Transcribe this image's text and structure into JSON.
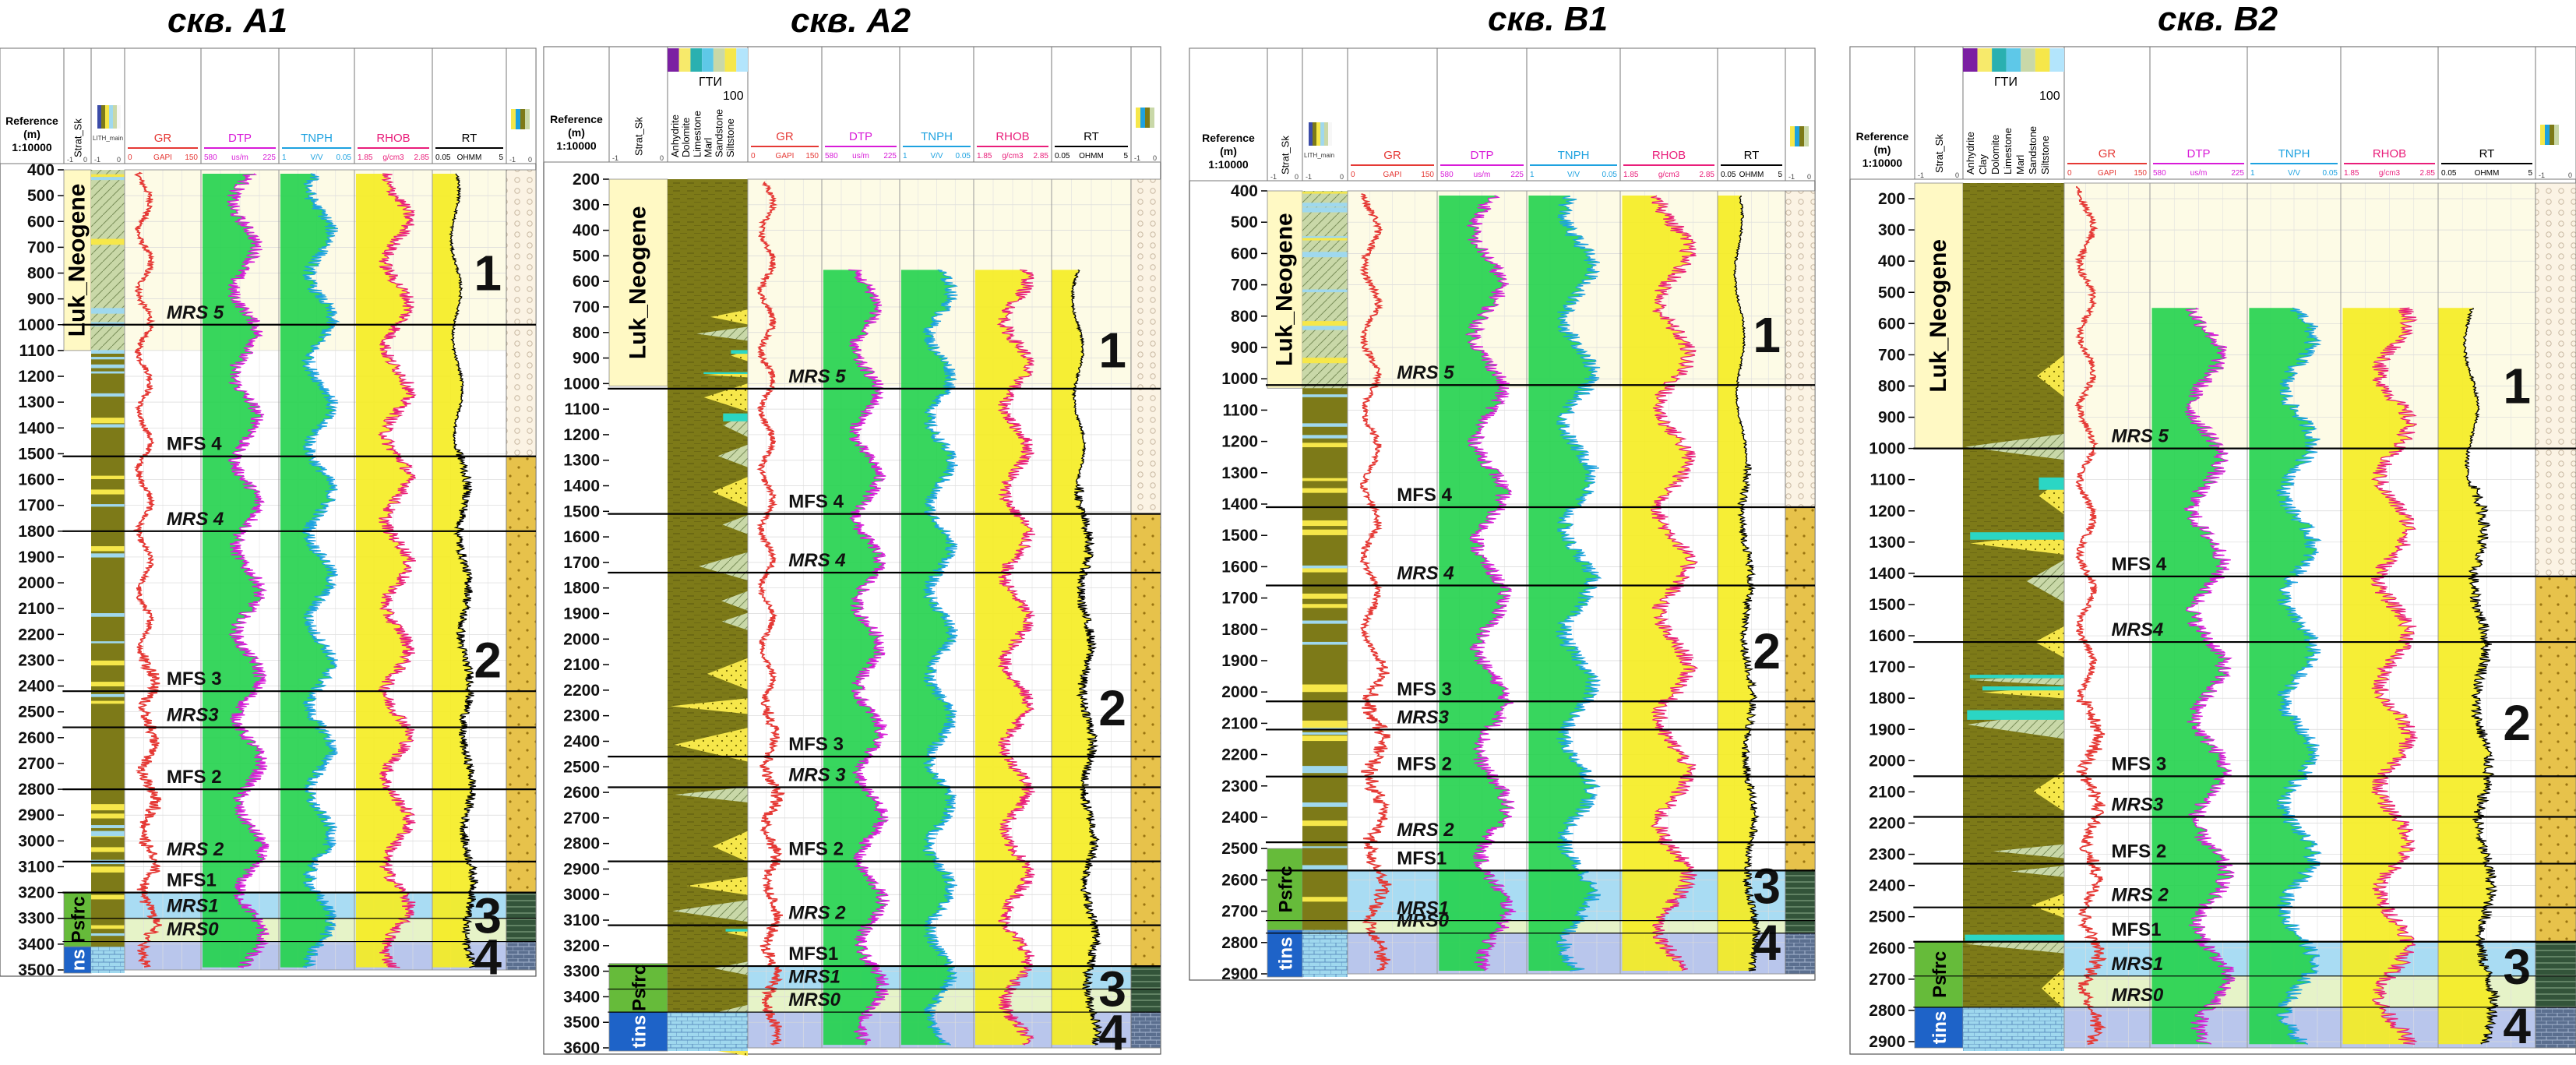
{
  "wells": [
    {
      "title": "скв. A1",
      "ref_label": [
        "Reference",
        "(m)",
        "1:10000"
      ],
      "strat_header": "Strat_Sk",
      "lith_header_small": "LITH_main",
      "curves": [
        {
          "name": "GR",
          "color": "#e53935",
          "min": "0",
          "unit": "GAPI",
          "max": "150"
        },
        {
          "name": "DTP",
          "color": "#d81bd8",
          "min": "580",
          "unit": "us/m",
          "max": "225"
        },
        {
          "name": "TNPH",
          "color": "#1ea2e0",
          "min": "1",
          "unit": "V/V",
          "max": "0.05"
        },
        {
          "name": "RHOB",
          "color": "#e91e7a",
          "min": "1.85",
          "unit": "g/cm3",
          "max": "2.85"
        },
        {
          "name": "RT",
          "color": "#000000",
          "min": "0.05",
          "unit": "OHMM",
          "max": "5"
        }
      ],
      "depth_ticks": [
        "400",
        "500",
        "600",
        "700",
        "800",
        "900",
        "1000",
        "1100",
        "1200",
        "1300",
        "1400",
        "1500",
        "1600",
        "1700",
        "1800",
        "1900",
        "2000",
        "2100",
        "2200",
        "2300",
        "2400",
        "2500",
        "2600",
        "2700",
        "2800",
        "2900",
        "3000",
        "3100",
        "3200",
        "3300",
        "3400",
        "3500"
      ],
      "strat_units": [
        {
          "label": "Luk_Neogene",
          "from": 400,
          "to": 1100,
          "color": "#fff9c4"
        },
        {
          "label": "Psfrc",
          "from": 3200,
          "to": 3410,
          "color": "#66bb3a"
        },
        {
          "label": "ns",
          "from": 3410,
          "to": 3520,
          "color": "#1e63c8"
        }
      ],
      "surfaces": [
        {
          "label": "MRS 5",
          "depth": 1000
        },
        {
          "label": "MFS 4",
          "depth": 1510
        },
        {
          "label": "MRS 4",
          "depth": 1800
        },
        {
          "label": "MFS 3",
          "depth": 2420
        },
        {
          "label": "MRS3",
          "depth": 2560
        },
        {
          "label": "MFS 2",
          "depth": 2800
        },
        {
          "label": "MRS 2",
          "depth": 3080
        },
        {
          "label": "MFS1",
          "depth": 3200
        },
        {
          "label": "MRS1",
          "depth": 3300
        },
        {
          "label": "MRS0",
          "depth": 3390
        }
      ],
      "sequences": [
        {
          "label": "1",
          "depth": 800
        },
        {
          "label": "2",
          "depth": 2300
        },
        {
          "label": "3",
          "depth": 3290
        },
        {
          "label": "4",
          "depth": 3450
        }
      ]
    },
    {
      "title": "скв. A2",
      "ref_label": [
        "Reference",
        "(m)",
        "1:10000"
      ],
      "strat_header": "Strat_Sk",
      "gti_header": "ГТИ",
      "gti_scale": "100",
      "gti_lithologies": [
        "Anhydrite",
        "Dolomite",
        "Limestone",
        "Marl",
        "Sandstone",
        "Siltstone"
      ],
      "curves": [
        {
          "name": "GR",
          "color": "#e53935",
          "min": "0",
          "unit": "GAPI",
          "max": "150"
        },
        {
          "name": "DTP",
          "color": "#d81bd8",
          "min": "580",
          "unit": "us/m",
          "max": "225"
        },
        {
          "name": "TNPH",
          "color": "#1ea2e0",
          "min": "1",
          "unit": "V/V",
          "max": "0.05"
        },
        {
          "name": "RHOB",
          "color": "#e91e7a",
          "min": "1.85",
          "unit": "g/cm3",
          "max": "2.85"
        },
        {
          "name": "RT",
          "color": "#000000",
          "min": "0.05",
          "unit": "OHMM",
          "max": "5"
        }
      ],
      "depth_ticks": [
        "200",
        "300",
        "400",
        "500",
        "600",
        "700",
        "800",
        "900",
        "1000",
        "1100",
        "1200",
        "1300",
        "1400",
        "1500",
        "1600",
        "1700",
        "1800",
        "1900",
        "2000",
        "2100",
        "2200",
        "2300",
        "2400",
        "2500",
        "2600",
        "2700",
        "2800",
        "2900",
        "3000",
        "3100",
        "3200",
        "3300",
        "3400",
        "3500",
        "3600"
      ],
      "strat_units": [
        {
          "label": "Luk_Neogene",
          "from": 200,
          "to": 1010,
          "color": "#fff9c4"
        },
        {
          "label": "Psfrc",
          "from": 3270,
          "to": 3460,
          "color": "#66bb3a"
        },
        {
          "label": "tins",
          "from": 3460,
          "to": 3620,
          "color": "#1e63c8"
        }
      ],
      "surfaces": [
        {
          "label": "MRS 5",
          "depth": 1020
        },
        {
          "label": "MFS 4",
          "depth": 1510
        },
        {
          "label": "MRS 4",
          "depth": 1740
        },
        {
          "label": "MFS 3",
          "depth": 2460
        },
        {
          "label": "MRS 3",
          "depth": 2580
        },
        {
          "label": "MFS 2",
          "depth": 2870
        },
        {
          "label": "MRS 2",
          "depth": 3120
        },
        {
          "label": "MFS1",
          "depth": 3280
        },
        {
          "label": "MRS1",
          "depth": 3370
        },
        {
          "label": "MRS0",
          "depth": 3460
        }
      ],
      "sequences": [
        {
          "label": "1",
          "depth": 870
        },
        {
          "label": "2",
          "depth": 2270
        },
        {
          "label": "3",
          "depth": 3370
        },
        {
          "label": "4",
          "depth": 3540
        }
      ]
    },
    {
      "title": "скв. B1",
      "ref_label": [
        "Reference",
        "(m)",
        "1:10000"
      ],
      "strat_header": "Strat_Sk",
      "lith_header_small": "LITH_main",
      "curves": [
        {
          "name": "GR",
          "color": "#e53935",
          "min": "0",
          "unit": "GAPI",
          "max": "150"
        },
        {
          "name": "DTP",
          "color": "#d81bd8",
          "min": "580",
          "unit": "us/m",
          "max": "225"
        },
        {
          "name": "TNPH",
          "color": "#1ea2e0",
          "min": "1",
          "unit": "V/V",
          "max": "0.05"
        },
        {
          "name": "RHOB",
          "color": "#e91e7a",
          "min": "1.85",
          "unit": "g/cm3",
          "max": "2.85"
        },
        {
          "name": "RT",
          "color": "#000000",
          "min": "0.05",
          "unit": "OHMM",
          "max": "5"
        }
      ],
      "depth_ticks": [
        "400",
        "500",
        "600",
        "700",
        "800",
        "900",
        "1000",
        "1100",
        "1200",
        "1300",
        "1400",
        "1500",
        "1600",
        "1700",
        "1800",
        "1900",
        "2000",
        "2100",
        "2200",
        "2300",
        "2400",
        "2500",
        "2600",
        "2700",
        "2800",
        "2900"
      ],
      "strat_units": [
        {
          "label": "Luk_Neogene",
          "from": 400,
          "to": 1030,
          "color": "#fff9c4"
        },
        {
          "label": "Psfrc",
          "from": 2500,
          "to": 2760,
          "color": "#66bb3a"
        },
        {
          "label": "tins",
          "from": 2760,
          "to": 2910,
          "color": "#1e63c8"
        }
      ],
      "surfaces": [
        {
          "label": "MRS 5",
          "depth": 1020
        },
        {
          "label": "MFS 4",
          "depth": 1410
        },
        {
          "label": "MRS 4",
          "depth": 1660
        },
        {
          "label": "MFS 3",
          "depth": 2030
        },
        {
          "label": "MRS3",
          "depth": 2120
        },
        {
          "label": "MFS 2",
          "depth": 2270
        },
        {
          "label": "MRS 2",
          "depth": 2480
        },
        {
          "label": "MFS1",
          "depth": 2570
        },
        {
          "label": "MRS1",
          "depth": 2730
        },
        {
          "label": "MRS0",
          "depth": 2770
        }
      ],
      "sequences": [
        {
          "label": "1",
          "depth": 860
        },
        {
          "label": "2",
          "depth": 1870
        },
        {
          "label": "3",
          "depth": 2620
        },
        {
          "label": "4",
          "depth": 2800
        }
      ]
    },
    {
      "title": "скв. B2",
      "ref_label": [
        "Reference",
        "(m)",
        "1:10000"
      ],
      "strat_header": "Strat_Sk",
      "gti_header": "ГТИ",
      "gti_scale": "100",
      "gti_lithologies": [
        "Anhydrite",
        "Clay",
        "Dolomite",
        "Limestone",
        "Marl",
        "Sandstone",
        "Siltstone"
      ],
      "curves": [
        {
          "name": "GR",
          "color": "#e53935",
          "min": "0",
          "unit": "GAPI",
          "max": "150"
        },
        {
          "name": "DTP",
          "color": "#d81bd8",
          "min": "580",
          "unit": "us/m",
          "max": "225"
        },
        {
          "name": "TNPH",
          "color": "#1ea2e0",
          "min": "1",
          "unit": "V/V",
          "max": "0.05"
        },
        {
          "name": "RHOB",
          "color": "#e91e7a",
          "min": "1.85",
          "unit": "g/cm3",
          "max": "2.85"
        },
        {
          "name": "RT",
          "color": "#000000",
          "min": "0.05",
          "unit": "OHMM",
          "max": "5"
        }
      ],
      "depth_ticks": [
        "200",
        "300",
        "400",
        "500",
        "600",
        "700",
        "800",
        "900",
        "1000",
        "1100",
        "1200",
        "1300",
        "1400",
        "1500",
        "1600",
        "1700",
        "1800",
        "1900",
        "2000",
        "2100",
        "2200",
        "2300",
        "2400",
        "2500",
        "2600",
        "2700",
        "2800",
        "2900"
      ],
      "strat_units": [
        {
          "label": "Luk_Neogene",
          "from": 150,
          "to": 1000,
          "color": "#fff9c4"
        },
        {
          "label": "Psfrc",
          "from": 2580,
          "to": 2790,
          "color": "#66bb3a"
        },
        {
          "label": "tins",
          "from": 2790,
          "to": 2920,
          "color": "#1e63c8"
        }
      ],
      "surfaces": [
        {
          "label": "MRS 5",
          "depth": 1000
        },
        {
          "label": "MFS 4",
          "depth": 1410
        },
        {
          "label": "MRS4",
          "depth": 1620
        },
        {
          "label": "MFS 3",
          "depth": 2050
        },
        {
          "label": "MRS3",
          "depth": 2180
        },
        {
          "label": "MFS 2",
          "depth": 2330
        },
        {
          "label": "MRS 2",
          "depth": 2470
        },
        {
          "label": "MFS1",
          "depth": 2580
        },
        {
          "label": "MRS1",
          "depth": 2690
        },
        {
          "label": "MRS0",
          "depth": 2790
        }
      ],
      "sequences": [
        {
          "label": "1",
          "depth": 800
        },
        {
          "label": "2",
          "depth": 1880
        },
        {
          "label": "3",
          "depth": 2660
        },
        {
          "label": "4",
          "depth": 2850
        }
      ]
    }
  ]
}
